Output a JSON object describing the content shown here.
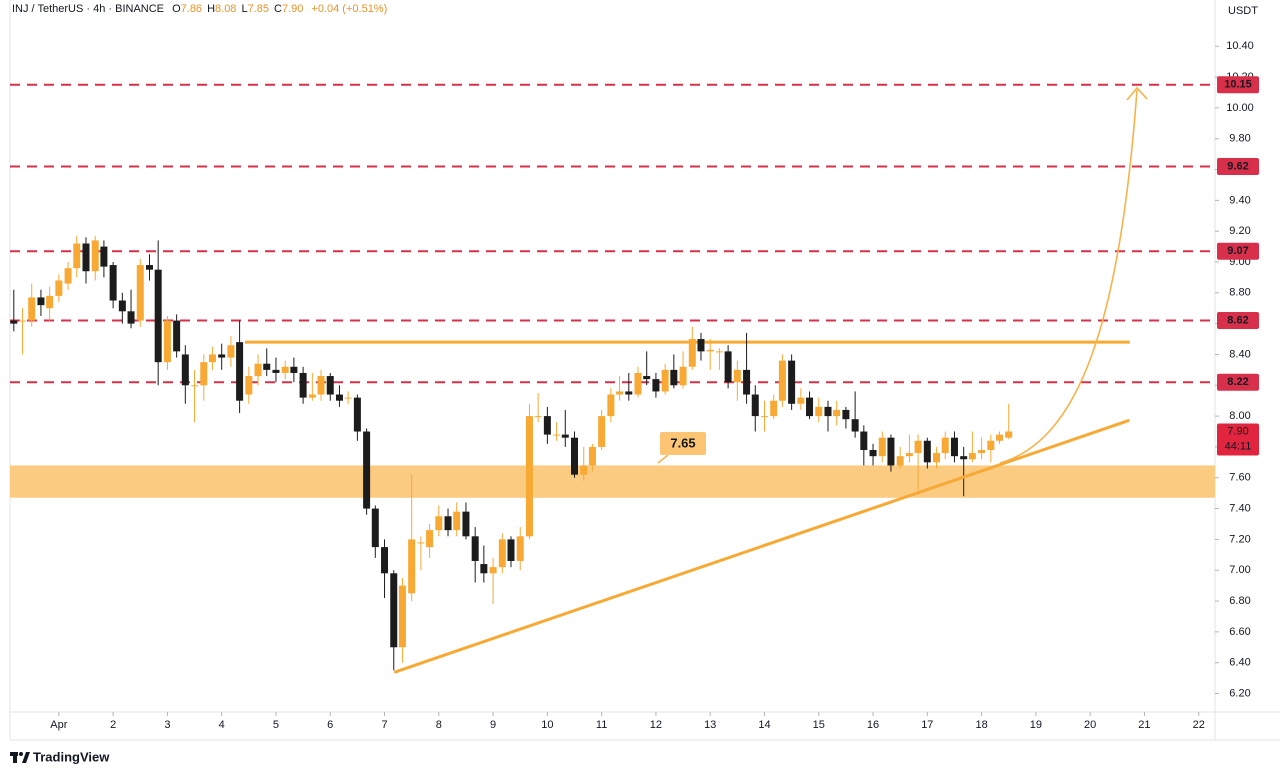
{
  "chart_data": {
    "type": "candlestick",
    "title": "INJ / TetherUS · 4h · BINANCE",
    "ohlc_legend": [
      {
        "label": "O",
        "value": "7.86"
      },
      {
        "label": "H",
        "value": "8.08"
      },
      {
        "label": "L",
        "value": "7.85"
      },
      {
        "label": "C",
        "value": "7.90"
      }
    ],
    "change": "+0.04 (+0.51%)",
    "y_unit": "USDT",
    "up_color": "#f7a934",
    "down_color": "#1c1c1c",
    "level_color": "#d8304a",
    "xlim": [
      0.1,
      22.3
    ],
    "ylim": [
      6.08,
      10.7
    ],
    "xticks": [
      {
        "value": 1,
        "label": "Apr"
      },
      2,
      3,
      4,
      5,
      6,
      7,
      8,
      9,
      10,
      11,
      12,
      13,
      14,
      15,
      16,
      17,
      18,
      19,
      20,
      21,
      22
    ],
    "yticks": [
      {
        "value": 6.2,
        "label": "6.20"
      },
      {
        "value": 6.4,
        "label": "6.40"
      },
      {
        "value": 6.6,
        "label": "6.60"
      },
      {
        "value": 6.8,
        "label": "6.80"
      },
      {
        "value": 7,
        "label": "7.00"
      },
      {
        "value": 7.2,
        "label": "7.20"
      },
      {
        "value": 7.4,
        "label": "7.40"
      },
      {
        "value": 7.6,
        "label": "7.60"
      },
      {
        "value": 7.8,
        "label": "7.80"
      },
      {
        "value": 8,
        "label": "8.00"
      },
      {
        "value": 8.2,
        "label": "8.20"
      },
      {
        "value": 8.4,
        "label": "8.40"
      },
      {
        "value": 8.6,
        "label": "8.60"
      },
      {
        "value": 8.8,
        "label": "8.80"
      },
      {
        "value": 9,
        "label": "9.00"
      },
      {
        "value": 9.2,
        "label": "9.20"
      },
      {
        "value": 9.4,
        "label": "9.40"
      },
      {
        "value": 9.6,
        "label": "9.60"
      },
      {
        "value": 9.8,
        "label": "9.80"
      },
      {
        "value": 10,
        "label": "10.00"
      },
      {
        "value": 10.2,
        "label": "10.20"
      },
      {
        "value": 10.4,
        "label": "10.40"
      }
    ],
    "zone": [
      7.47,
      7.68
    ],
    "resistance": {
      "x": [
        4.43,
        20.73
      ],
      "y": 8.48
    },
    "trendline": {
      "x": [
        7.2,
        20.7
      ],
      "y": [
        6.34,
        7.97
      ]
    },
    "annotation": 7.65,
    "levels": [
      10.15,
      9.62,
      9.07,
      8.62,
      8.22
    ],
    "last_price": {
      "value": 7.9,
      "label": "7.90"
    },
    "countdown": "44:11",
    "candles": [
      {
        "x": 0.17,
        "o": 8.62,
        "h": 8.82,
        "l": 8.55,
        "c": 8.6
      },
      {
        "x": 0.33,
        "o": 8.62,
        "h": 8.7,
        "l": 8.4,
        "c": 8.62
      },
      {
        "x": 0.5,
        "o": 8.62,
        "h": 8.86,
        "l": 8.58,
        "c": 8.77
      },
      {
        "x": 0.67,
        "o": 8.77,
        "h": 8.82,
        "l": 8.65,
        "c": 8.72
      },
      {
        "x": 0.83,
        "o": 8.7,
        "h": 8.84,
        "l": 8.62,
        "c": 8.78
      },
      {
        "x": 1,
        "o": 8.78,
        "h": 8.92,
        "l": 8.74,
        "c": 8.88
      },
      {
        "x": 1.17,
        "o": 8.86,
        "h": 9,
        "l": 8.82,
        "c": 8.96
      },
      {
        "x": 1.33,
        "o": 8.96,
        "h": 9.17,
        "l": 8.9,
        "c": 9.12
      },
      {
        "x": 1.5,
        "o": 9.12,
        "h": 9.16,
        "l": 8.86,
        "c": 8.94
      },
      {
        "x": 1.67,
        "o": 8.94,
        "h": 9.17,
        "l": 8.88,
        "c": 9.14
      },
      {
        "x": 1.83,
        "o": 9.1,
        "h": 9.14,
        "l": 8.9,
        "c": 8.97
      },
      {
        "x": 2,
        "o": 8.98,
        "h": 9,
        "l": 8.7,
        "c": 8.75
      },
      {
        "x": 2.17,
        "o": 8.75,
        "h": 8.8,
        "l": 8.6,
        "c": 8.68
      },
      {
        "x": 2.33,
        "o": 8.68,
        "h": 8.82,
        "l": 8.57,
        "c": 8.6
      },
      {
        "x": 2.5,
        "o": 8.62,
        "h": 9.02,
        "l": 8.58,
        "c": 8.98
      },
      {
        "x": 2.67,
        "o": 8.98,
        "h": 9.05,
        "l": 8.88,
        "c": 8.95
      },
      {
        "x": 2.83,
        "o": 8.95,
        "h": 9.14,
        "l": 8.2,
        "c": 8.35
      },
      {
        "x": 3,
        "o": 8.35,
        "h": 8.65,
        "l": 8.3,
        "c": 8.62
      },
      {
        "x": 3.17,
        "o": 8.62,
        "h": 8.66,
        "l": 8.38,
        "c": 8.42
      },
      {
        "x": 3.33,
        "o": 8.4,
        "h": 8.46,
        "l": 8.08,
        "c": 8.2
      },
      {
        "x": 3.5,
        "o": 8.2,
        "h": 8.3,
        "l": 7.96,
        "c": 8.2
      },
      {
        "x": 3.67,
        "o": 8.2,
        "h": 8.4,
        "l": 8.1,
        "c": 8.35
      },
      {
        "x": 3.83,
        "o": 8.35,
        "h": 8.45,
        "l": 8.3,
        "c": 8.4
      },
      {
        "x": 4,
        "o": 8.4,
        "h": 8.47,
        "l": 8.3,
        "c": 8.38
      },
      {
        "x": 4.17,
        "o": 8.38,
        "h": 8.52,
        "l": 8.32,
        "c": 8.46
      },
      {
        "x": 4.33,
        "o": 8.48,
        "h": 8.62,
        "l": 8.02,
        "c": 8.1
      },
      {
        "x": 4.5,
        "o": 8.14,
        "h": 8.32,
        "l": 8.08,
        "c": 8.26
      },
      {
        "x": 4.67,
        "o": 8.26,
        "h": 8.4,
        "l": 8.2,
        "c": 8.34
      },
      {
        "x": 4.83,
        "o": 8.34,
        "h": 8.44,
        "l": 8.26,
        "c": 8.3
      },
      {
        "x": 5,
        "o": 8.3,
        "h": 8.38,
        "l": 8.22,
        "c": 8.28
      },
      {
        "x": 5.17,
        "o": 8.28,
        "h": 8.36,
        "l": 8.24,
        "c": 8.32
      },
      {
        "x": 5.33,
        "o": 8.32,
        "h": 8.38,
        "l": 8.22,
        "c": 8.28
      },
      {
        "x": 5.5,
        "o": 8.28,
        "h": 8.32,
        "l": 8.08,
        "c": 8.12
      },
      {
        "x": 5.67,
        "o": 8.12,
        "h": 8.28,
        "l": 8.1,
        "c": 8.14
      },
      {
        "x": 5.83,
        "o": 8.14,
        "h": 8.3,
        "l": 8.1,
        "c": 8.26
      },
      {
        "x": 6,
        "o": 8.26,
        "h": 8.28,
        "l": 8.1,
        "c": 8.14
      },
      {
        "x": 6.17,
        "o": 8.14,
        "h": 8.2,
        "l": 8.06,
        "c": 8.1
      },
      {
        "x": 6.33,
        "o": 8.12,
        "h": 8.16,
        "l": 8.08,
        "c": 8.12
      },
      {
        "x": 6.5,
        "o": 8.12,
        "h": 8.14,
        "l": 7.84,
        "c": 7.9
      },
      {
        "x": 6.67,
        "o": 7.9,
        "h": 7.92,
        "l": 7.36,
        "c": 7.4
      },
      {
        "x": 6.83,
        "o": 7.4,
        "h": 7.42,
        "l": 7.08,
        "c": 7.15
      },
      {
        "x": 7,
        "o": 7.15,
        "h": 7.2,
        "l": 6.82,
        "c": 6.98
      },
      {
        "x": 7.17,
        "o": 6.98,
        "h": 7,
        "l": 6.35,
        "c": 6.5
      },
      {
        "x": 7.33,
        "o": 6.5,
        "h": 6.95,
        "l": 6.4,
        "c": 6.9
      },
      {
        "x": 7.5,
        "o": 6.85,
        "h": 7.62,
        "l": 6.8,
        "c": 7.2
      },
      {
        "x": 7.67,
        "o": 7.18,
        "h": 7.22,
        "l": 7,
        "c": 7.18
      },
      {
        "x": 7.83,
        "o": 7.15,
        "h": 7.3,
        "l": 7.08,
        "c": 7.26
      },
      {
        "x": 8,
        "o": 7.26,
        "h": 7.42,
        "l": 7.22,
        "c": 7.35
      },
      {
        "x": 8.17,
        "o": 7.35,
        "h": 7.4,
        "l": 7.22,
        "c": 7.26
      },
      {
        "x": 8.33,
        "o": 7.26,
        "h": 7.44,
        "l": 7.22,
        "c": 7.38
      },
      {
        "x": 8.5,
        "o": 7.38,
        "h": 7.44,
        "l": 7.2,
        "c": 7.22
      },
      {
        "x": 8.67,
        "o": 7.22,
        "h": 7.28,
        "l": 6.92,
        "c": 7.06
      },
      {
        "x": 8.83,
        "o": 7.04,
        "h": 7.16,
        "l": 6.92,
        "c": 6.98
      },
      {
        "x": 9,
        "o": 6.98,
        "h": 7.08,
        "l": 6.78,
        "c": 7.02
      },
      {
        "x": 9.17,
        "o": 7.02,
        "h": 7.24,
        "l": 6.98,
        "c": 7.2
      },
      {
        "x": 9.33,
        "o": 7.2,
        "h": 7.22,
        "l": 7.02,
        "c": 7.06
      },
      {
        "x": 9.5,
        "o": 7.06,
        "h": 7.28,
        "l": 7,
        "c": 7.22
      },
      {
        "x": 9.67,
        "o": 7.22,
        "h": 8.08,
        "l": 7.2,
        "c": 8
      },
      {
        "x": 9.83,
        "o": 8,
        "h": 8.15,
        "l": 7.96,
        "c": 8
      },
      {
        "x": 10,
        "o": 8,
        "h": 8.06,
        "l": 7.82,
        "c": 7.88
      },
      {
        "x": 10.17,
        "o": 7.88,
        "h": 7.96,
        "l": 7.84,
        "c": 7.88
      },
      {
        "x": 10.33,
        "o": 7.88,
        "h": 8.04,
        "l": 7.8,
        "c": 7.86
      },
      {
        "x": 10.5,
        "o": 7.86,
        "h": 7.9,
        "l": 7.6,
        "c": 7.62
      },
      {
        "x": 10.67,
        "o": 7.62,
        "h": 7.8,
        "l": 7.58,
        "c": 7.68
      },
      {
        "x": 10.83,
        "o": 7.68,
        "h": 7.82,
        "l": 7.64,
        "c": 7.8
      },
      {
        "x": 11,
        "o": 7.8,
        "h": 8.04,
        "l": 7.78,
        "c": 8
      },
      {
        "x": 11.17,
        "o": 8,
        "h": 8.18,
        "l": 7.96,
        "c": 8.14
      },
      {
        "x": 11.33,
        "o": 8.14,
        "h": 8.26,
        "l": 8.1,
        "c": 8.16
      },
      {
        "x": 11.5,
        "o": 8.16,
        "h": 8.28,
        "l": 8.1,
        "c": 8.14
      },
      {
        "x": 11.67,
        "o": 8.14,
        "h": 8.32,
        "l": 8.12,
        "c": 8.28
      },
      {
        "x": 11.83,
        "o": 8.26,
        "h": 8.42,
        "l": 8.2,
        "c": 8.24
      },
      {
        "x": 12,
        "o": 8.24,
        "h": 8.28,
        "l": 8.12,
        "c": 8.16
      },
      {
        "x": 12.17,
        "o": 8.16,
        "h": 8.34,
        "l": 8.14,
        "c": 8.3
      },
      {
        "x": 12.33,
        "o": 8.3,
        "h": 8.4,
        "l": 8.18,
        "c": 8.2
      },
      {
        "x": 12.5,
        "o": 8.2,
        "h": 8.42,
        "l": 8.18,
        "c": 8.32
      },
      {
        "x": 12.67,
        "o": 8.32,
        "h": 8.58,
        "l": 8.3,
        "c": 8.5
      },
      {
        "x": 12.83,
        "o": 8.5,
        "h": 8.54,
        "l": 8.36,
        "c": 8.42
      },
      {
        "x": 13,
        "o": 8.42,
        "h": 8.5,
        "l": 8.3,
        "c": 8.43
      },
      {
        "x": 13.17,
        "o": 8.42,
        "h": 8.44,
        "l": 8.3,
        "c": 8.42
      },
      {
        "x": 13.33,
        "o": 8.42,
        "h": 8.46,
        "l": 8.18,
        "c": 8.22
      },
      {
        "x": 13.5,
        "o": 8.22,
        "h": 8.36,
        "l": 8.1,
        "c": 8.3
      },
      {
        "x": 13.67,
        "o": 8.3,
        "h": 8.54,
        "l": 8.08,
        "c": 8.14
      },
      {
        "x": 13.83,
        "o": 8.14,
        "h": 8.2,
        "l": 7.9,
        "c": 8
      },
      {
        "x": 14,
        "o": 8,
        "h": 8.1,
        "l": 7.9,
        "c": 8
      },
      {
        "x": 14.17,
        "o": 8,
        "h": 8.14,
        "l": 7.98,
        "c": 8.1
      },
      {
        "x": 14.33,
        "o": 8.1,
        "h": 8.4,
        "l": 8.06,
        "c": 8.36
      },
      {
        "x": 14.5,
        "o": 8.36,
        "h": 8.4,
        "l": 8.04,
        "c": 8.08
      },
      {
        "x": 14.67,
        "o": 8.08,
        "h": 8.18,
        "l": 8.04,
        "c": 8.12
      },
      {
        "x": 14.83,
        "o": 8.12,
        "h": 8.16,
        "l": 7.98,
        "c": 8
      },
      {
        "x": 15,
        "o": 8,
        "h": 8.12,
        "l": 7.96,
        "c": 8.06
      },
      {
        "x": 15.17,
        "o": 8.06,
        "h": 8.1,
        "l": 7.9,
        "c": 8
      },
      {
        "x": 15.33,
        "o": 8,
        "h": 8.1,
        "l": 7.94,
        "c": 8.04
      },
      {
        "x": 15.5,
        "o": 8.04,
        "h": 8.06,
        "l": 7.92,
        "c": 7.98
      },
      {
        "x": 15.67,
        "o": 7.98,
        "h": 8.16,
        "l": 7.86,
        "c": 7.9
      },
      {
        "x": 15.83,
        "o": 7.9,
        "h": 7.94,
        "l": 7.68,
        "c": 7.78
      },
      {
        "x": 16,
        "o": 7.78,
        "h": 7.82,
        "l": 7.68,
        "c": 7.74
      },
      {
        "x": 16.17,
        "o": 7.74,
        "h": 7.9,
        "l": 7.7,
        "c": 7.86
      },
      {
        "x": 16.33,
        "o": 7.86,
        "h": 7.88,
        "l": 7.64,
        "c": 7.68
      },
      {
        "x": 16.5,
        "o": 7.68,
        "h": 7.8,
        "l": 7.66,
        "c": 7.74
      },
      {
        "x": 16.67,
        "o": 7.74,
        "h": 7.88,
        "l": 7.7,
        "c": 7.76
      },
      {
        "x": 16.83,
        "o": 7.76,
        "h": 7.88,
        "l": 7.52,
        "c": 7.84
      },
      {
        "x": 17,
        "o": 7.84,
        "h": 7.86,
        "l": 7.66,
        "c": 7.7
      },
      {
        "x": 17.17,
        "o": 7.7,
        "h": 7.8,
        "l": 7.66,
        "c": 7.76
      },
      {
        "x": 17.33,
        "o": 7.76,
        "h": 7.9,
        "l": 7.72,
        "c": 7.86
      },
      {
        "x": 17.5,
        "o": 7.86,
        "h": 7.9,
        "l": 7.7,
        "c": 7.74
      },
      {
        "x": 17.67,
        "o": 7.74,
        "h": 7.8,
        "l": 7.48,
        "c": 7.72
      },
      {
        "x": 17.83,
        "o": 7.72,
        "h": 7.9,
        "l": 7.7,
        "c": 7.76
      },
      {
        "x": 18,
        "o": 7.76,
        "h": 7.86,
        "l": 7.72,
        "c": 7.78
      },
      {
        "x": 18.17,
        "o": 7.78,
        "h": 7.88,
        "l": 7.7,
        "c": 7.84
      },
      {
        "x": 18.33,
        "o": 7.84,
        "h": 7.9,
        "l": 7.82,
        "c": 7.88
      },
      {
        "x": 18.5,
        "o": 7.86,
        "h": 8.08,
        "l": 7.85,
        "c": 7.9
      }
    ]
  },
  "footer": {
    "brand": "TradingView"
  }
}
